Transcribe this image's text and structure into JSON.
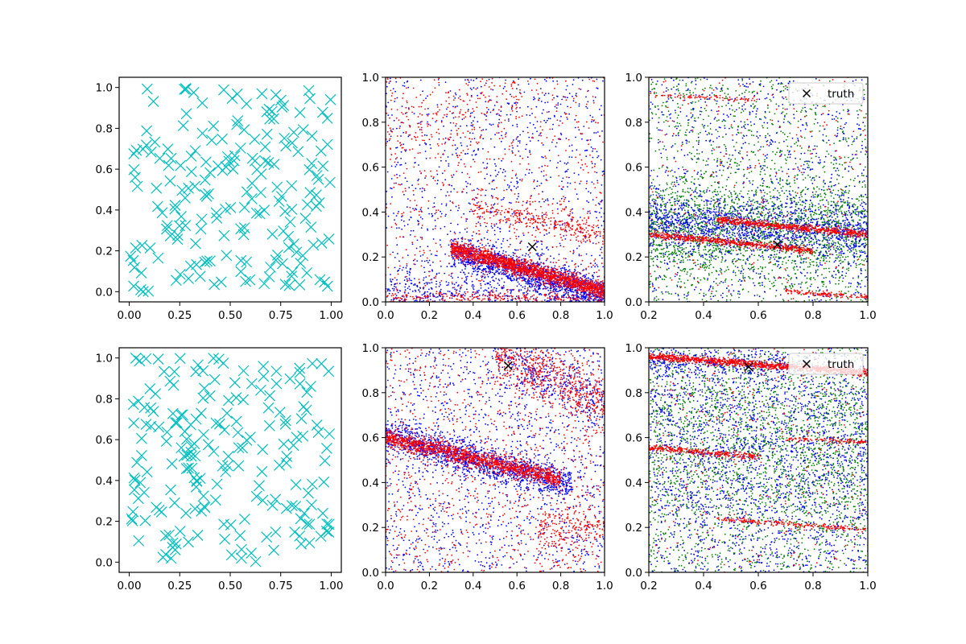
{
  "figure": {
    "background": "#ffffff"
  },
  "colors": {
    "cyan": "#00bfbf",
    "blue": "#0000ff",
    "red": "#ff0000",
    "green": "#008000",
    "truth": "#000000",
    "axis": "#000000"
  },
  "chart_data": [
    {
      "id": "top-left",
      "type": "scatter",
      "marker": "x",
      "xlim": [
        -0.05,
        1.05
      ],
      "ylim": [
        -0.05,
        1.05
      ],
      "xticks": [
        "0.00",
        "0.25",
        "0.50",
        "0.75",
        "1.00"
      ],
      "yticks": [
        "0.0",
        "0.2",
        "0.4",
        "0.6",
        "0.8",
        "1.0"
      ],
      "series": [
        {
          "color": "cyan",
          "marker": "x",
          "count": 200,
          "distribution": "uniform",
          "seed": 11
        }
      ]
    },
    {
      "id": "top-middle",
      "type": "scatter",
      "xlim": [
        0,
        1
      ],
      "ylim": [
        0,
        1
      ],
      "xticks": [
        "0.0",
        "0.2",
        "0.4",
        "0.6",
        "0.8",
        "1.0"
      ],
      "yticks": [
        "0.0",
        "0.2",
        "0.4",
        "0.6",
        "0.8",
        "1.0"
      ],
      "series": [
        {
          "color": "blue",
          "count": 3200,
          "seed": 21,
          "bands": [
            {
              "x": [
                0.3,
                1.0
              ],
              "y0": 0.31,
              "slope": -0.28,
              "spread": 0.035,
              "weight": 0.42
            },
            {
              "x": [
                0.0,
                1.0
              ],
              "y0": 0.0,
              "slope": 0.0,
              "spread": 0.08,
              "weight": 0.25
            }
          ]
        },
        {
          "color": "red",
          "count": 3000,
          "seed": 22,
          "bands": [
            {
              "x": [
                0.3,
                1.0
              ],
              "y0": 0.32,
              "slope": -0.27,
              "spread": 0.018,
              "weight": 0.55
            },
            {
              "x": [
                0.4,
                1.0
              ],
              "y0": 0.5,
              "slope": -0.2,
              "spread": 0.03,
              "weight": 0.1
            },
            {
              "x": [
                0.0,
                1.0
              ],
              "y0": 0.02,
              "slope": 0.0,
              "spread": 0.012,
              "weight": 0.08
            },
            {
              "x": [
                0.0,
                0.6
              ],
              "y0": 0.72,
              "slope": 0.4,
              "spread": 0.08,
              "weight": 0.05
            }
          ]
        }
      ],
      "truth": {
        "x": 0.67,
        "y": 0.245
      }
    },
    {
      "id": "top-right",
      "type": "scatter",
      "xlim": [
        0.2,
        1.0
      ],
      "ylim": [
        0,
        1
      ],
      "xticks": [
        "0.2",
        "0.4",
        "0.6",
        "0.8",
        "1.0"
      ],
      "yticks": [
        "0.0",
        "0.2",
        "0.4",
        "0.6",
        "0.8",
        "1.0"
      ],
      "legend": {
        "location": "upper right",
        "label": "truth"
      },
      "series": [
        {
          "color": "green",
          "count": 2800,
          "seed": 31,
          "bands": [
            {
              "x": [
                0.2,
                1.0
              ],
              "y0": 0.33,
              "slope": -0.02,
              "spread": 0.11,
              "weight": 0.6
            }
          ]
        },
        {
          "color": "blue",
          "count": 2200,
          "seed": 32,
          "bands": [
            {
              "x": [
                0.2,
                1.0
              ],
              "y0": 0.38,
              "slope": -0.08,
              "spread": 0.06,
              "weight": 0.55
            }
          ]
        },
        {
          "color": "red",
          "count": 1600,
          "seed": 33,
          "bands": [
            {
              "x": [
                0.45,
                1.0
              ],
              "y0": 0.42,
              "slope": -0.12,
              "spread": 0.008,
              "weight": 0.38
            },
            {
              "x": [
                0.2,
                0.8
              ],
              "y0": 0.325,
              "slope": -0.12,
              "spread": 0.008,
              "weight": 0.35
            },
            {
              "x": [
                0.7,
                1.0
              ],
              "y0": 0.11,
              "slope": -0.09,
              "spread": 0.006,
              "weight": 0.08
            },
            {
              "x": [
                0.2,
                0.6
              ],
              "y0": 0.935,
              "slope": -0.06,
              "spread": 0.006,
              "weight": 0.05
            }
          ]
        }
      ],
      "truth": {
        "x": 0.67,
        "y": 0.255
      }
    },
    {
      "id": "bottom-left",
      "type": "scatter",
      "marker": "x",
      "xlim": [
        -0.05,
        1.05
      ],
      "ylim": [
        -0.05,
        1.05
      ],
      "xticks": [
        "0.00",
        "0.25",
        "0.50",
        "0.75",
        "1.00"
      ],
      "yticks": [
        "0.0",
        "0.2",
        "0.4",
        "0.6",
        "0.8",
        "1.0"
      ],
      "series": [
        {
          "color": "cyan",
          "marker": "x",
          "count": 200,
          "distribution": "uniform",
          "seed": 41
        }
      ]
    },
    {
      "id": "bottom-middle",
      "type": "scatter",
      "xlim": [
        0,
        1
      ],
      "ylim": [
        0,
        1
      ],
      "xticks": [
        "0.0",
        "0.2",
        "0.4",
        "0.6",
        "0.8",
        "1.0"
      ],
      "yticks": [
        "0.0",
        "0.2",
        "0.4",
        "0.6",
        "0.8",
        "1.0"
      ],
      "series": [
        {
          "color": "blue",
          "count": 3000,
          "seed": 51,
          "bands": [
            {
              "x": [
                0.0,
                0.85
              ],
              "y0": 0.61,
              "slope": -0.26,
              "spread": 0.035,
              "weight": 0.45
            },
            {
              "x": [
                0.5,
                1.0
              ],
              "y0": 1.2,
              "slope": -0.45,
              "spread": 0.06,
              "weight": 0.1
            }
          ]
        },
        {
          "color": "red",
          "count": 3000,
          "seed": 52,
          "bands": [
            {
              "x": [
                0.0,
                0.8
              ],
              "y0": 0.6,
              "slope": -0.23,
              "spread": 0.02,
              "weight": 0.45
            },
            {
              "x": [
                0.5,
                1.0
              ],
              "y0": 1.25,
              "slope": -0.5,
              "spread": 0.06,
              "weight": 0.18
            },
            {
              "x": [
                0.7,
                1.0
              ],
              "y0": 0.2,
              "slope": 0.0,
              "spread": 0.05,
              "weight": 0.06
            }
          ]
        }
      ],
      "truth": {
        "x": 0.56,
        "y": 0.92
      }
    },
    {
      "id": "bottom-right",
      "type": "scatter",
      "xlim": [
        0.2,
        1.0
      ],
      "ylim": [
        0,
        1
      ],
      "xticks": [
        "0.2",
        "0.4",
        "0.6",
        "0.8",
        "1.0"
      ],
      "yticks": [
        "0.0",
        "0.2",
        "0.4",
        "0.6",
        "0.8",
        "1.0"
      ],
      "legend": {
        "location": "upper right",
        "label": "truth"
      },
      "series": [
        {
          "color": "green",
          "count": 2600,
          "seed": 61,
          "bands": [
            {
              "x": [
                0.2,
                1.0
              ],
              "y0": 0.6,
              "slope": -0.05,
              "spread": 0.22,
              "weight": 0.45
            }
          ]
        },
        {
          "color": "blue",
          "count": 2600,
          "seed": 62,
          "bands": [
            {
              "x": [
                0.2,
                1.0
              ],
              "y0": 0.6,
              "slope": -0.1,
              "spread": 0.25,
              "weight": 0.35
            },
            {
              "x": [
                0.2,
                0.7
              ],
              "y0": 0.95,
              "slope": -0.05,
              "spread": 0.03,
              "weight": 0.1
            }
          ]
        },
        {
          "color": "red",
          "count": 1900,
          "seed": 63,
          "bands": [
            {
              "x": [
                0.2,
                1.0
              ],
              "y0": 0.98,
              "slope": -0.09,
              "spread": 0.008,
              "weight": 0.55
            },
            {
              "x": [
                0.2,
                0.6
              ],
              "y0": 0.575,
              "slope": -0.1,
              "spread": 0.008,
              "weight": 0.15
            },
            {
              "x": [
                0.7,
                1.0
              ],
              "y0": 0.63,
              "slope": -0.05,
              "spread": 0.005,
              "weight": 0.05
            },
            {
              "x": [
                0.45,
                1.0
              ],
              "y0": 0.28,
              "slope": -0.09,
              "spread": 0.005,
              "weight": 0.1
            }
          ]
        }
      ],
      "truth": {
        "x": 0.565,
        "y": 0.915
      }
    }
  ]
}
